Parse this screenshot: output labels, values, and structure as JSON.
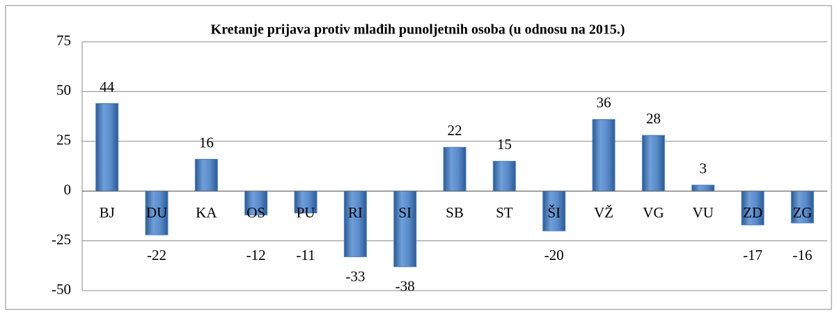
{
  "chart_data": {
    "type": "bar",
    "title": "Kretanje prijava protiv mlađih punoljetnih osoba (u odnosu na 2015.)",
    "categories": [
      "BJ",
      "DU",
      "KA",
      "OS",
      "PU",
      "RI",
      "SI",
      "SB",
      "ST",
      "ŠI",
      "VŽ",
      "VG",
      "VU",
      "ZD",
      "ZG"
    ],
    "values": [
      44,
      -22,
      16,
      -12,
      -11,
      -33,
      -38,
      22,
      15,
      -20,
      36,
      28,
      3,
      -17,
      -16
    ],
    "color": "#4f81bd",
    "ylim": [
      -50,
      75
    ],
    "yticks": [
      -50,
      -25,
      0,
      25,
      50,
      75
    ],
    "grid": true
  }
}
